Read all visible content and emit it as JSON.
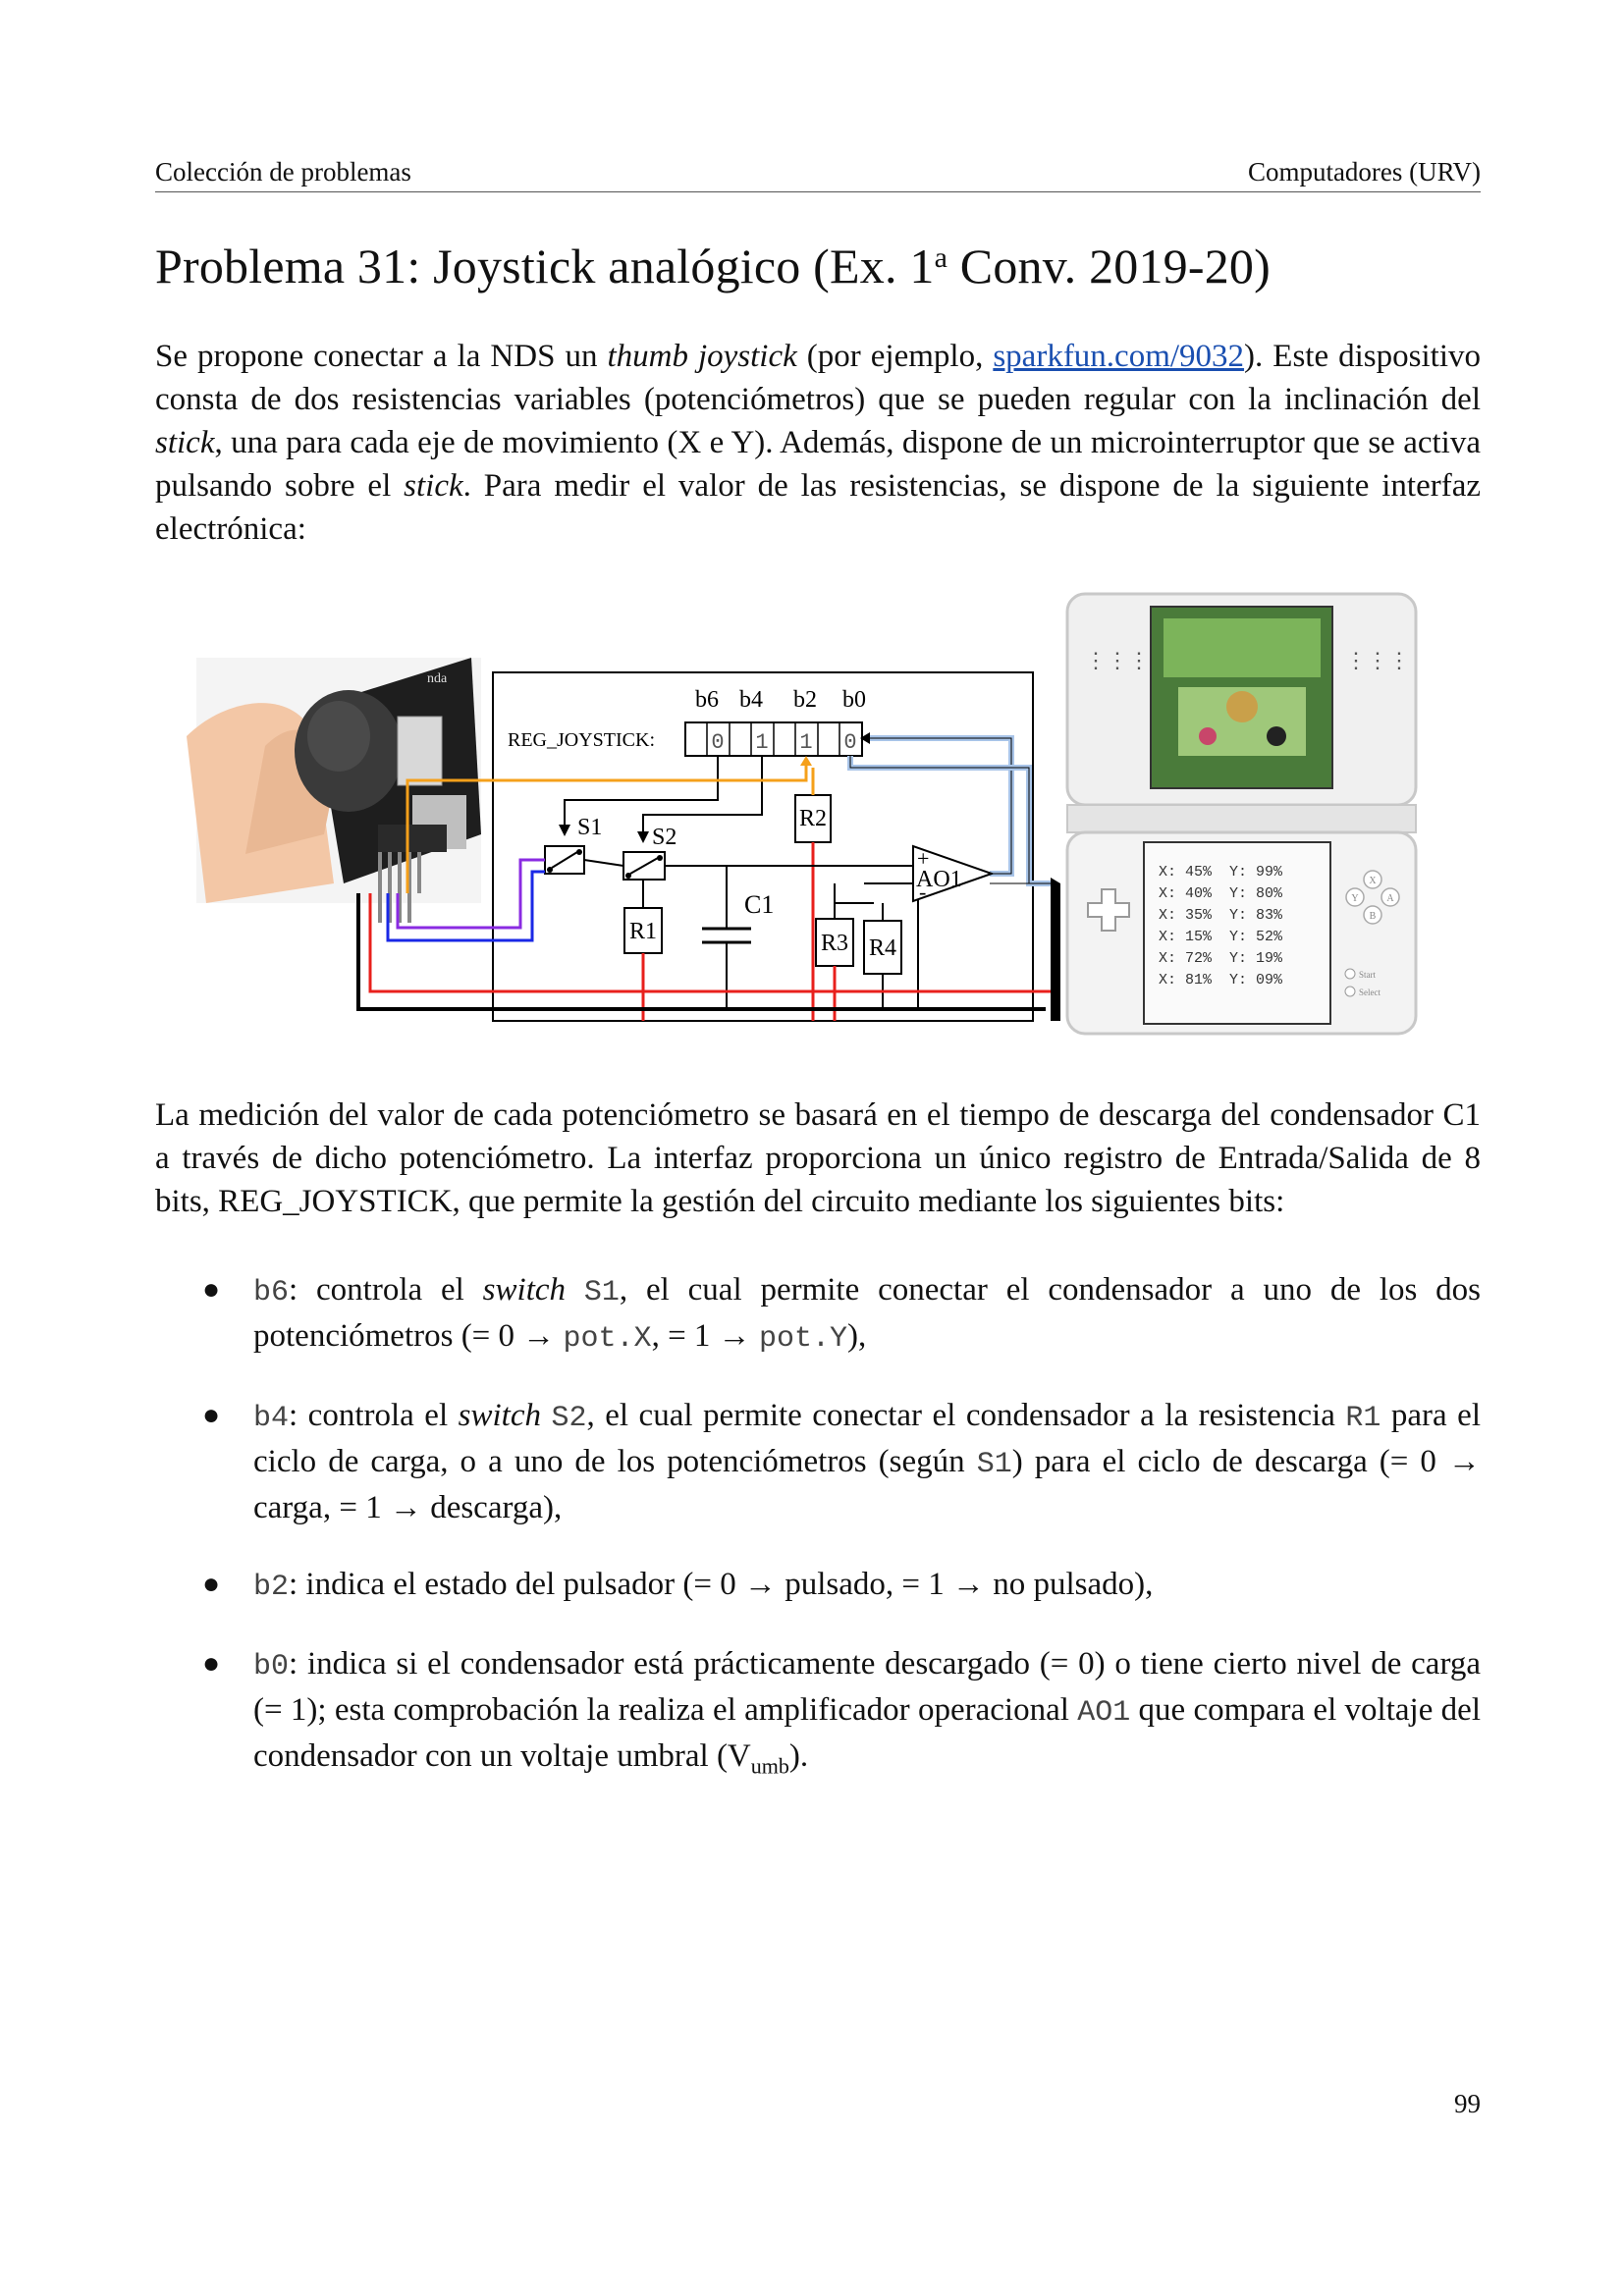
{
  "header": {
    "left": "Colección de problemas",
    "right": "Computadores (URV)"
  },
  "title": {
    "main": "Problema 31: Joystick analógico (Ex. 1",
    "sup": "a",
    "rest": " Conv. 2019-20)"
  },
  "intro": {
    "t1": "Se propone conectar a la NDS un ",
    "t1_em": "thumb joystick",
    "t2": " (por ejemplo, ",
    "link": "sparkfun.com/9032",
    "t3": "). Este dispositivo consta de dos resistencias variables (potenciómetros) que se pueden regular con la inclinación del ",
    "t3_em": "stick",
    "t4": ", una para cada eje de movimiento (X e Y). Además, dispone de un microinterruptor que se activa pulsando sobre el ",
    "t4_em": "stick",
    "t5": ". Para medir el valor de las resistencias, se dispone de la siguiente interfaz electrónica:"
  },
  "figure": {
    "bit_labels": [
      "b6",
      "b4",
      "b2",
      "b0"
    ],
    "reg_label": "REG_JOYSTICK:",
    "reg_cells": [
      "0",
      "1",
      "1",
      "0"
    ],
    "s1": "S1",
    "s2": "S2",
    "r1": "R1",
    "r2": "R2",
    "r3": "R3",
    "r4": "R4",
    "c1": "C1",
    "ao1": "AO1",
    "plus": "+",
    "minus": "-",
    "module_text": "nda",
    "screen_lines": [
      "X: 45%  Y: 99%",
      "X: 40%  Y: 80%",
      "X: 35%  Y: 83%",
      "X: 15%  Y: 52%",
      "X: 72%  Y: 19%",
      "X: 81%  Y: 09%"
    ],
    "ds_label_start": "Start",
    "ds_label_select": "Select",
    "ds_buttons": [
      "X",
      "Y",
      "A",
      "B"
    ],
    "colors": {
      "red": "#e8201c",
      "black": "#000000",
      "orange": "#f5a01a",
      "purple": "#8a2be2",
      "blue": "#1a28e6",
      "light_blue": "#a8c4e8"
    }
  },
  "para2": "La medición del valor de cada potenciómetro se basará en el tiempo de descarga del condensador C1 a través de dicho potenciómetro. La interfaz proporciona un único registro de Entrada/Salida de 8 bits, REG_JOYSTICK, que permite la gestión del circuito mediante los siguientes bits:",
  "bullets": {
    "b6": {
      "code": "b6",
      "t1": ": controla el ",
      "em": "switch",
      "t2": " ",
      "code2": "S1",
      "t3": ", el cual permite conectar el condensador a uno de los dos potenciómetros (= 0 → ",
      "code3": "pot.X",
      "t4": ", = 1 → ",
      "code4": "pot.Y",
      "t5": "),"
    },
    "b4": {
      "code": "b4",
      "t1": ": controla el ",
      "em": "switch",
      "t2": " ",
      "code2": "S2",
      "t3": ", el cual permite conectar el condensador a la resistencia ",
      "code3": "R1",
      "t4": " para el ciclo de carga, o a uno de los potenciómetros (según ",
      "code4": "S1",
      "t5": ") para el ciclo de descarga (= 0 → carga, = 1 → descarga),"
    },
    "b2": {
      "code": "b2",
      "t1": ": indica el estado del pulsador (= 0 → pulsado, = 1 → no pulsado),"
    },
    "b0": {
      "code": "b0",
      "t1": ": indica si el condensador está prácticamente descargado (= 0) o tiene cierto nivel de carga (= 1); esta comprobación la realiza el amplificador operacional ",
      "code2": "AO1",
      "t2": " que compara el voltaje del condensador con un voltaje umbral (V",
      "sub": "umb",
      "t3": ")."
    }
  },
  "page_number": "99"
}
